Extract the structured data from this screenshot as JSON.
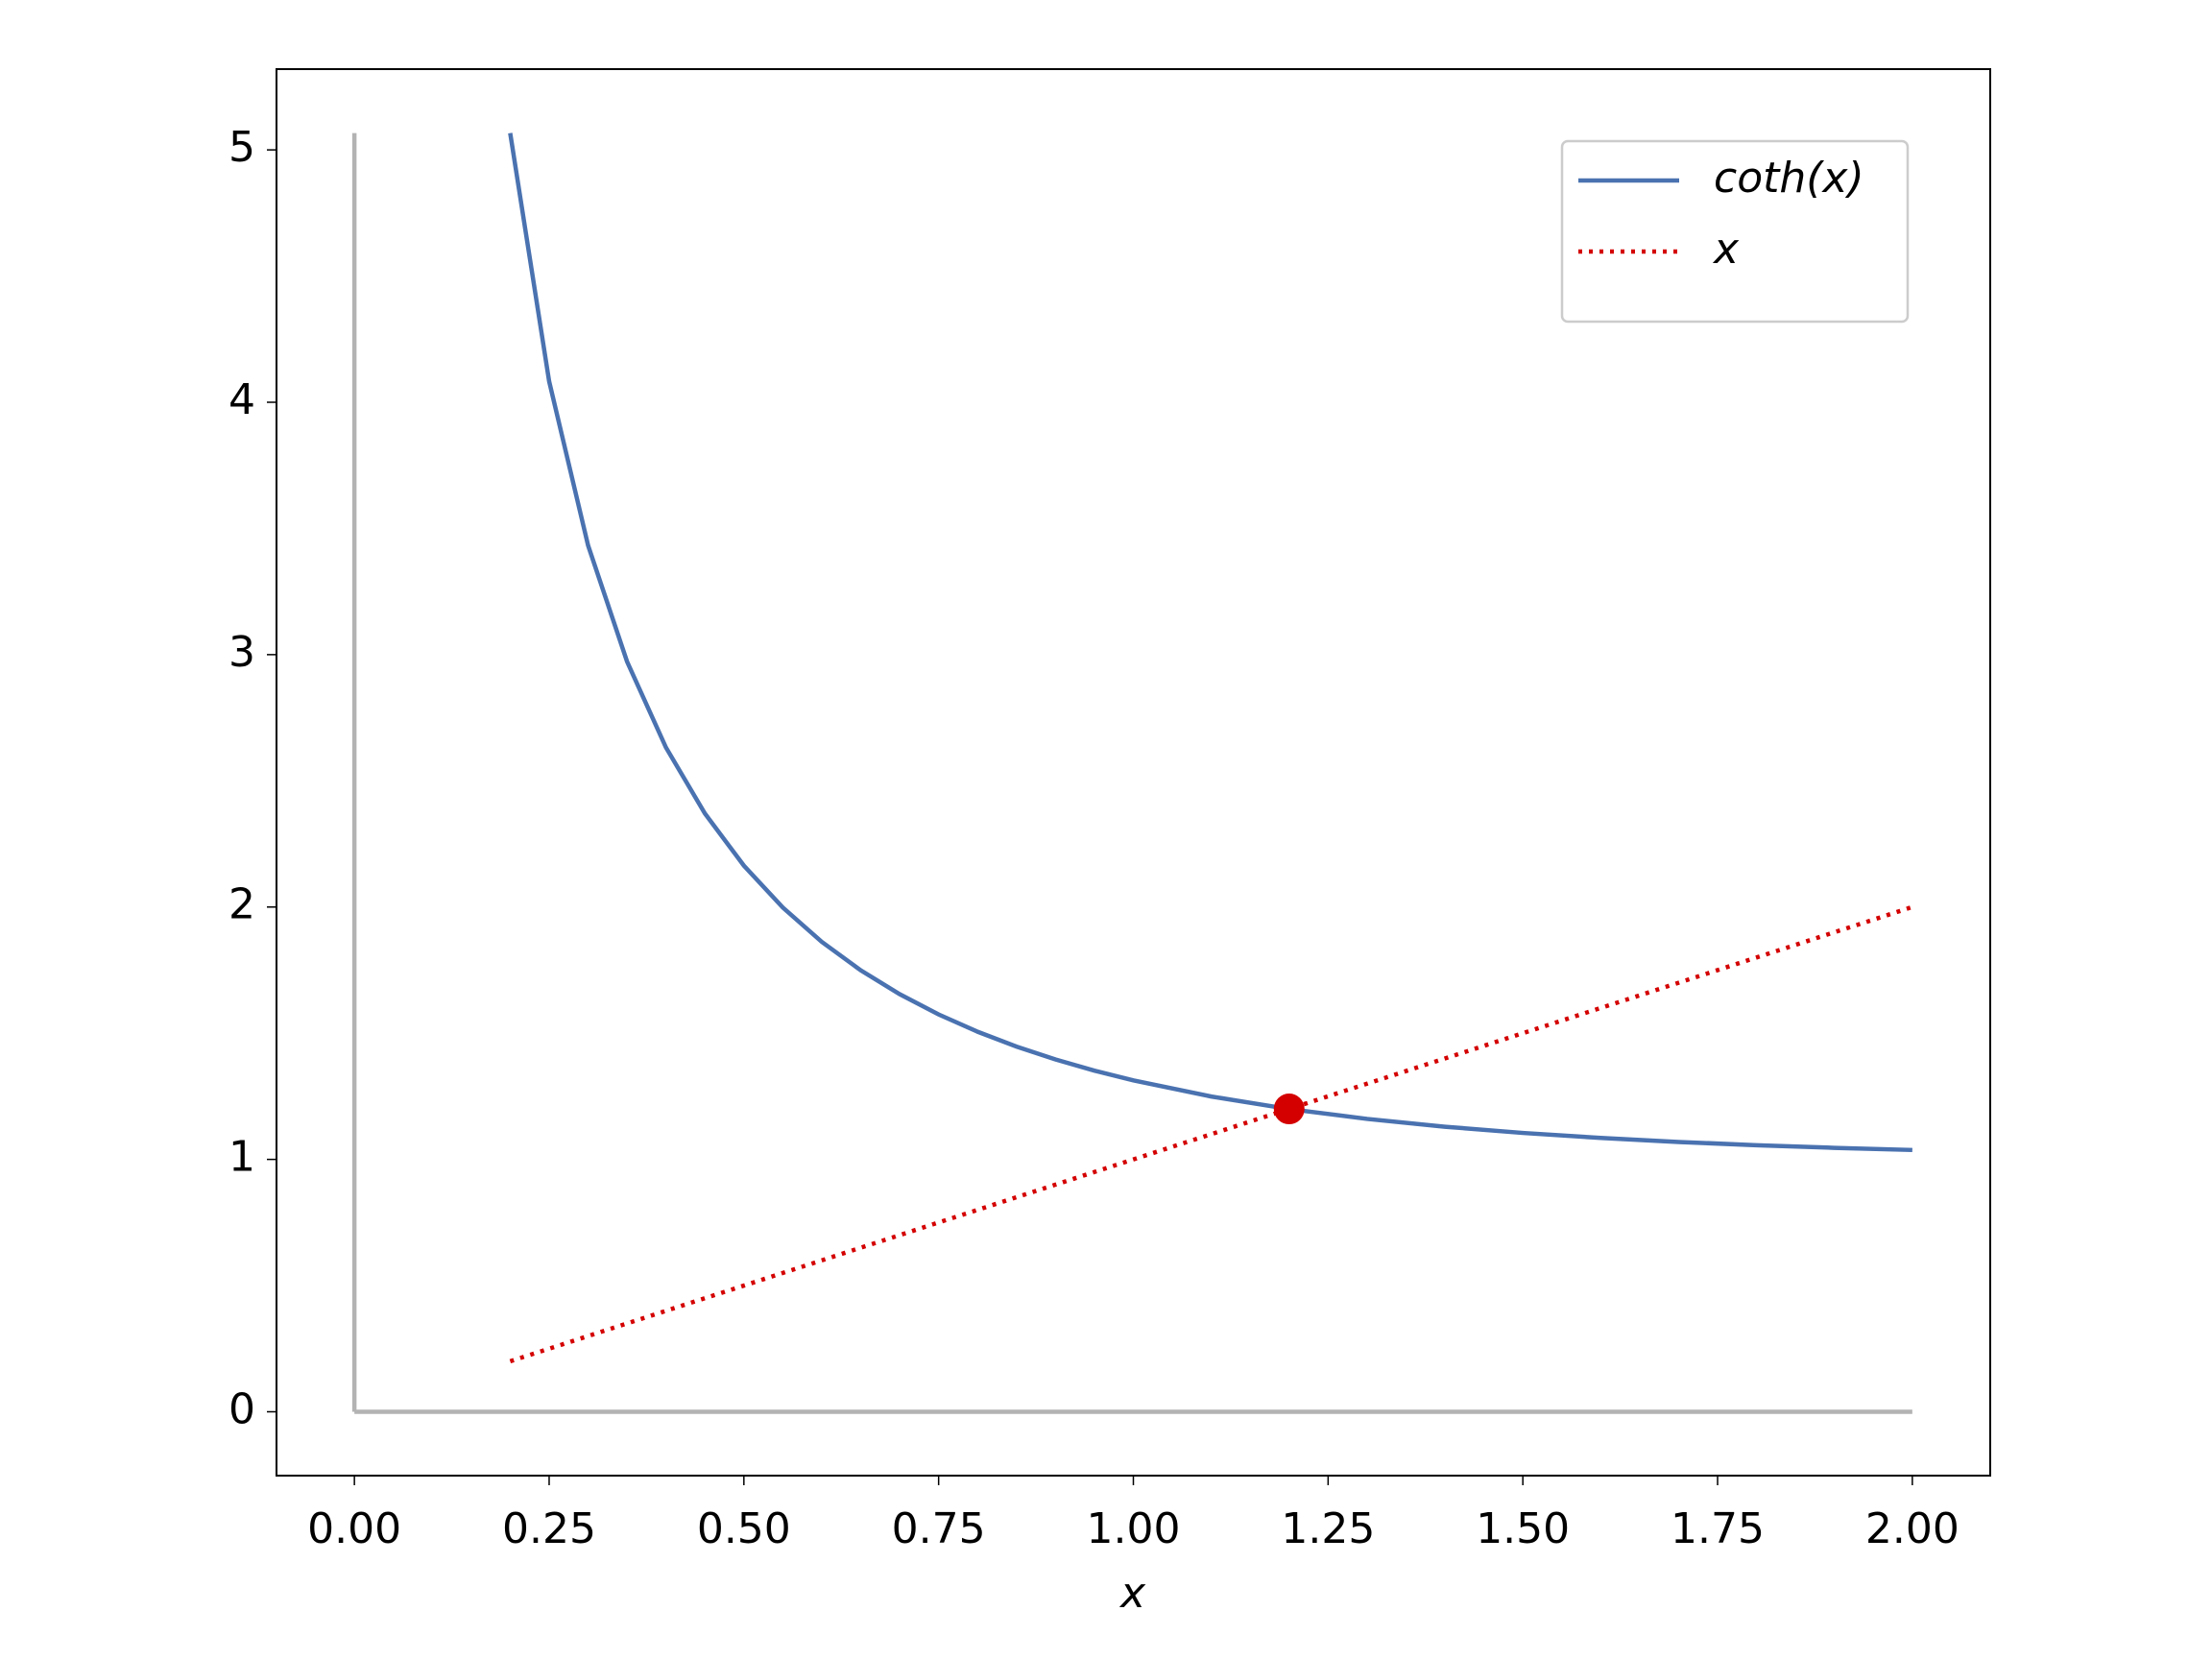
{
  "chart_data": {
    "type": "line",
    "xlabel": "x",
    "x": [
      0.2,
      0.25,
      0.3,
      0.35,
      0.4,
      0.45,
      0.5,
      0.55,
      0.6,
      0.65,
      0.7,
      0.75,
      0.8,
      0.85,
      0.9,
      0.95,
      1.0,
      1.1,
      1.2,
      1.3,
      1.4,
      1.5,
      1.6,
      1.7,
      1.8,
      1.9,
      2.0
    ],
    "series": [
      {
        "name": "coth(x)",
        "color": "#4a72b0",
        "style": "solid",
        "values": [
          5.0665,
          4.083,
          3.4328,
          2.9729,
          2.6319,
          2.3703,
          2.164,
          1.9979,
          1.862,
          1.7493,
          1.6546,
          1.5744,
          1.5059,
          1.447,
          1.3961,
          1.3517,
          1.313,
          1.2492,
          1.1995,
          1.1605,
          1.1295,
          1.1048,
          1.085,
          1.0691,
          1.0562,
          1.0458,
          1.0373
        ]
      },
      {
        "name": "x",
        "color": "#d40000",
        "style": "dotted",
        "values": [
          0.2,
          0.25,
          0.3,
          0.35,
          0.4,
          0.45,
          0.5,
          0.55,
          0.6,
          0.65,
          0.7,
          0.75,
          0.8,
          0.85,
          0.9,
          0.95,
          1.0,
          1.1,
          1.2,
          1.3,
          1.4,
          1.5,
          1.6,
          1.7,
          1.8,
          1.9,
          2.0
        ]
      }
    ],
    "marker": {
      "x": 1.2,
      "y": 1.2,
      "color": "#d40000"
    },
    "zero_lines": true,
    "zero_line_color": "#b3b3b3",
    "xlim": [
      -0.1,
      2.1
    ],
    "ylim": [
      -0.253,
      5.32
    ],
    "xticks": [
      {
        "value": 0,
        "label": "0.00"
      },
      {
        "value": 0.25,
        "label": "0.25"
      },
      {
        "value": 0.5,
        "label": "0.50"
      },
      {
        "value": 0.75,
        "label": "0.75"
      },
      {
        "value": 1,
        "label": "1.00"
      },
      {
        "value": 1.25,
        "label": "1.25"
      },
      {
        "value": 1.5,
        "label": "1.50"
      },
      {
        "value": 1.75,
        "label": "1.75"
      },
      {
        "value": 2,
        "label": "2.00"
      }
    ],
    "yticks": [
      0,
      1,
      2,
      3,
      4,
      5
    ],
    "legend": "upper right"
  }
}
